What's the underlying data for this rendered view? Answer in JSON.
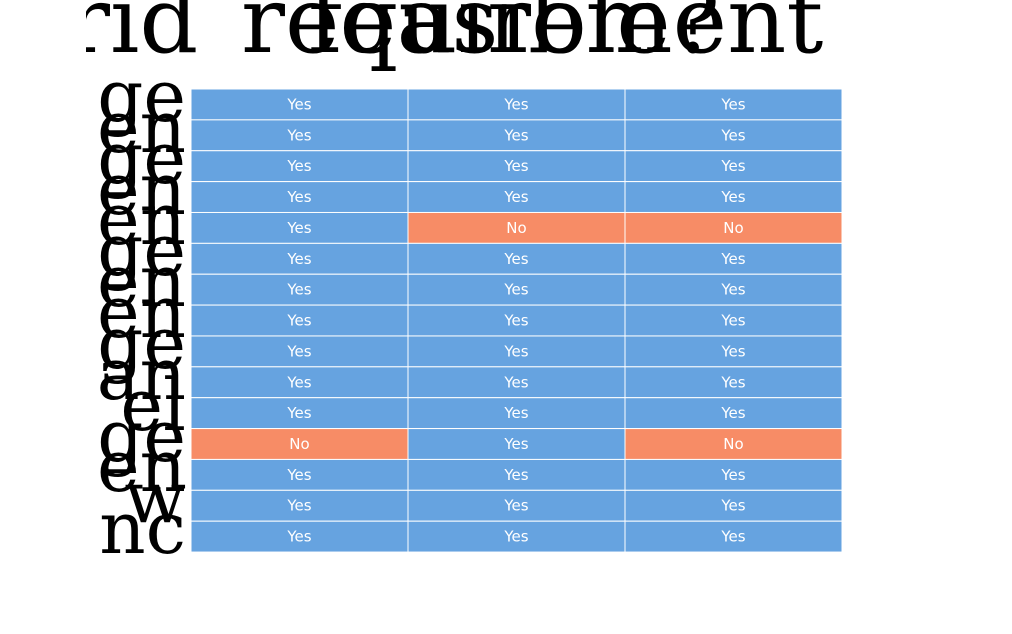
{
  "chart_data": {
    "type": "table",
    "colors": {
      "Yes": "#66a3e0",
      "No": "#f78c66",
      "grid": "#ffffff"
    },
    "header_fragments": [
      "rid",
      "requirement",
      "feasible?"
    ],
    "row_label_fragments": [
      "ge",
      "en",
      "ge",
      "en",
      "en",
      "ge",
      "en",
      "en",
      "ge",
      "an",
      "el",
      "ge",
      "en",
      "w",
      "nc"
    ],
    "rows": [
      [
        "Yes",
        "Yes",
        "Yes"
      ],
      [
        "Yes",
        "Yes",
        "Yes"
      ],
      [
        "Yes",
        "Yes",
        "Yes"
      ],
      [
        "Yes",
        "Yes",
        "Yes"
      ],
      [
        "Yes",
        "No",
        "No"
      ],
      [
        "Yes",
        "Yes",
        "Yes"
      ],
      [
        "Yes",
        "Yes",
        "Yes"
      ],
      [
        "Yes",
        "Yes",
        "Yes"
      ],
      [
        "Yes",
        "Yes",
        "Yes"
      ],
      [
        "Yes",
        "Yes",
        "Yes"
      ],
      [
        "Yes",
        "Yes",
        "Yes"
      ],
      [
        "No",
        "Yes",
        "No"
      ],
      [
        "Yes",
        "Yes",
        "Yes"
      ],
      [
        "Yes",
        "Yes",
        "Yes"
      ],
      [
        "Yes",
        "Yes",
        "Yes"
      ]
    ]
  }
}
